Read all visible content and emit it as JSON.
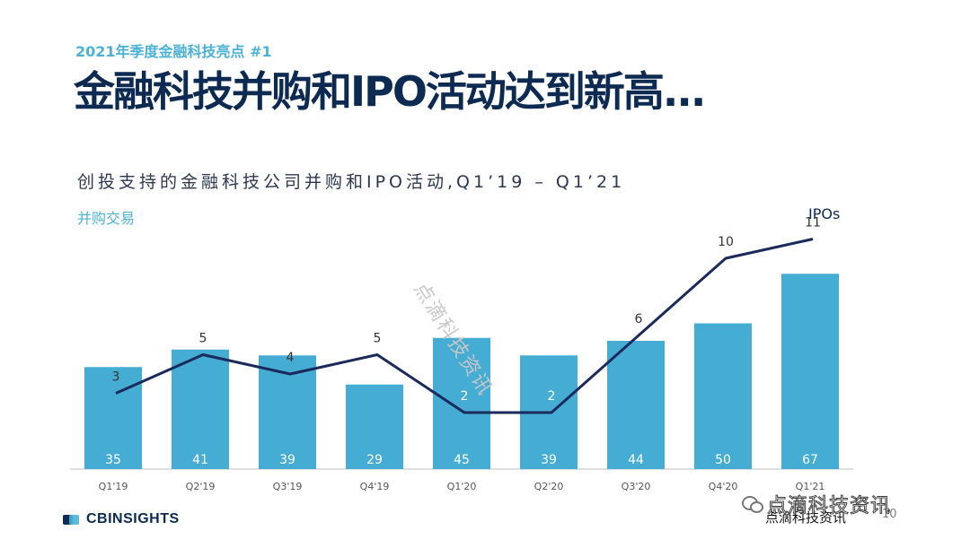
{
  "header": {
    "kicker": "2021年季度金融科技亮点 #1",
    "headline": "金融科技并购和IPO活动达到新高..."
  },
  "chart_data": {
    "type": "bar",
    "title": "创投支持的金融科技公司并购和IPO活动,Q1’19 – Q1’21",
    "categories": [
      "Q1'19",
      "Q2'19",
      "Q3'19",
      "Q4'19",
      "Q1'20",
      "Q2'20",
      "Q3'20",
      "Q4'20",
      "Q1'21"
    ],
    "series": [
      {
        "name": "并购交易",
        "type": "bar",
        "values": [
          35,
          41,
          39,
          29,
          45,
          39,
          44,
          50,
          67
        ]
      },
      {
        "name": "IPOs",
        "type": "line",
        "values": [
          3,
          5,
          4,
          5,
          2,
          2,
          6,
          10,
          11
        ]
      }
    ],
    "colors": {
      "bar": "#45acd3",
      "line": "#1b2a5c",
      "bar_label": "#ffffff",
      "line_label": "#333333"
    },
    "ylim_bars": [
      0,
      70
    ],
    "ylim_line": [
      0,
      12
    ],
    "grid": false,
    "legend": "none"
  },
  "brand": {
    "logo_text": "CBINSIGHTS",
    "page_number": "10"
  },
  "watermarks": {
    "diagonal": "点滴科技资讯",
    "source": "点滴科技资讯",
    "wechat": "点滴科技资讯",
    "wechat_icon": "wechat-icon"
  }
}
